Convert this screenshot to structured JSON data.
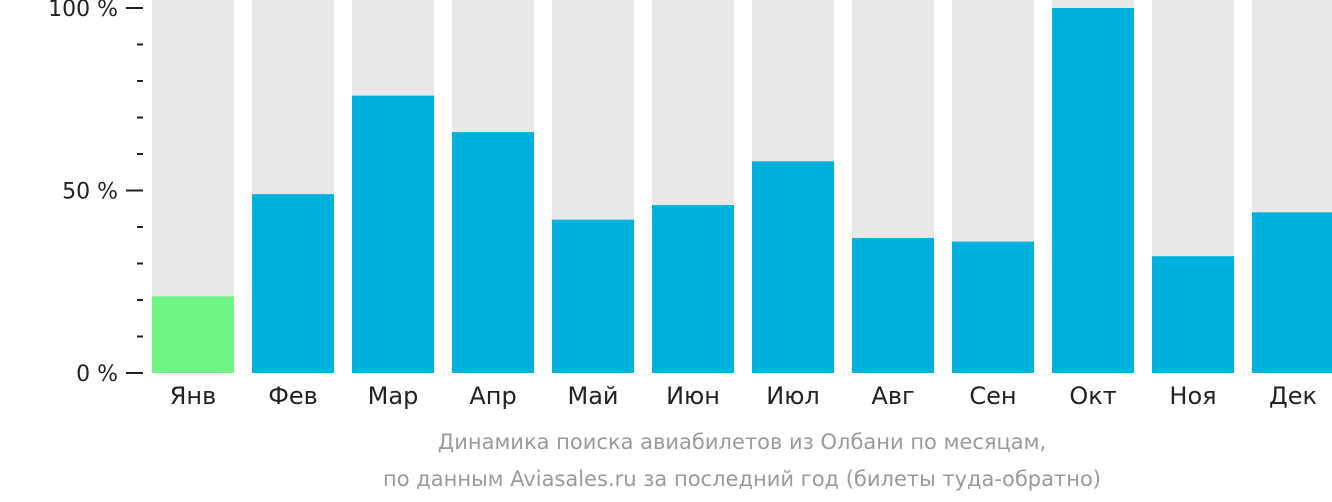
{
  "chart_data": {
    "type": "bar",
    "categories": [
      "Янв",
      "Фев",
      "Мар",
      "Апр",
      "Май",
      "Июн",
      "Июл",
      "Авг",
      "Сен",
      "Окт",
      "Ноя",
      "Дек"
    ],
    "values": [
      21,
      49,
      76,
      66,
      42,
      46,
      58,
      37,
      36,
      100,
      32,
      44
    ],
    "ylim": [
      0,
      100
    ],
    "y_ticks": [
      {
        "value": 0,
        "label": "0 %"
      },
      {
        "value": 50,
        "label": "50 %"
      },
      {
        "value": 100,
        "label": "100 %"
      }
    ],
    "y_minor_step": 10,
    "highlight_index": 0,
    "colors": {
      "bar": "#00b0dd",
      "highlight": "#6ef583",
      "track": "#e8e8e8",
      "axis": "#222222"
    },
    "caption_lines": [
      "Динамика поиска авиабилетов из Олбани по месяцам,",
      "по данным Aviasales.ru за последний год (билеты туда-обратно)"
    ]
  }
}
